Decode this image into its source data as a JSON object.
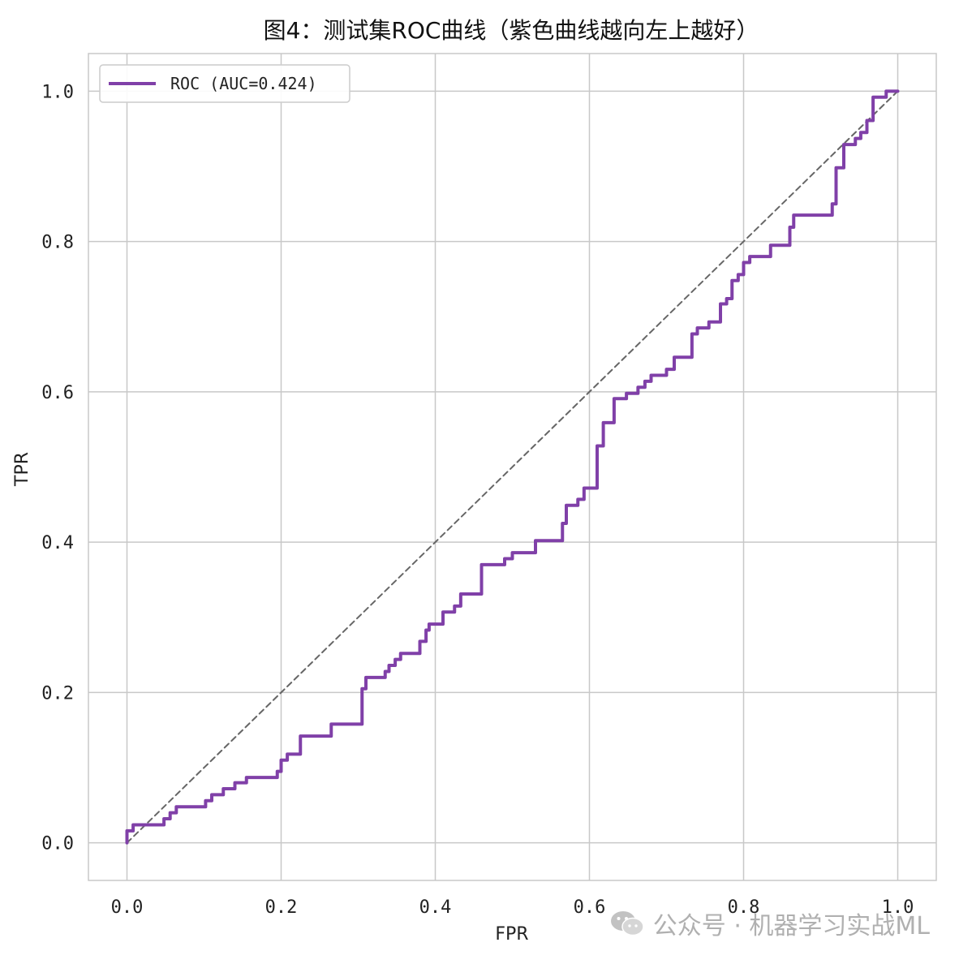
{
  "chart_data": {
    "type": "line",
    "title": "图4：测试集ROC曲线（紫色曲线越向左上越好）",
    "xlabel": "FPR",
    "ylabel": "TPR",
    "xlim": [
      -0.05,
      1.05
    ],
    "ylim": [
      -0.05,
      1.05
    ],
    "xticks": [
      "0.0",
      "0.2",
      "0.4",
      "0.6",
      "0.8",
      "1.0"
    ],
    "yticks": [
      "0.0",
      "0.2",
      "0.4",
      "0.6",
      "0.8",
      "1.0"
    ],
    "grid": true,
    "legend_position": "top-left",
    "series": [
      {
        "name": "ROC (AUC=0.424)",
        "color": "#8040a8",
        "style": "solid",
        "points": [
          [
            0.0,
            0.0
          ],
          [
            0.0,
            0.016
          ],
          [
            0.008,
            0.016
          ],
          [
            0.008,
            0.024
          ],
          [
            0.048,
            0.024
          ],
          [
            0.048,
            0.032
          ],
          [
            0.056,
            0.032
          ],
          [
            0.056,
            0.04
          ],
          [
            0.064,
            0.04
          ],
          [
            0.064,
            0.048
          ],
          [
            0.102,
            0.048
          ],
          [
            0.102,
            0.056
          ],
          [
            0.11,
            0.056
          ],
          [
            0.11,
            0.064
          ],
          [
            0.125,
            0.064
          ],
          [
            0.125,
            0.072
          ],
          [
            0.14,
            0.072
          ],
          [
            0.14,
            0.08
          ],
          [
            0.155,
            0.08
          ],
          [
            0.155,
            0.087
          ],
          [
            0.195,
            0.087
          ],
          [
            0.195,
            0.095
          ],
          [
            0.2,
            0.095
          ],
          [
            0.2,
            0.11
          ],
          [
            0.208,
            0.11
          ],
          [
            0.208,
            0.118
          ],
          [
            0.225,
            0.118
          ],
          [
            0.225,
            0.142
          ],
          [
            0.265,
            0.142
          ],
          [
            0.265,
            0.158
          ],
          [
            0.305,
            0.158
          ],
          [
            0.305,
            0.205
          ],
          [
            0.31,
            0.205
          ],
          [
            0.31,
            0.22
          ],
          [
            0.335,
            0.22
          ],
          [
            0.335,
            0.228
          ],
          [
            0.34,
            0.228
          ],
          [
            0.34,
            0.236
          ],
          [
            0.348,
            0.236
          ],
          [
            0.348,
            0.244
          ],
          [
            0.355,
            0.244
          ],
          [
            0.355,
            0.252
          ],
          [
            0.38,
            0.252
          ],
          [
            0.38,
            0.268
          ],
          [
            0.388,
            0.268
          ],
          [
            0.388,
            0.283
          ],
          [
            0.392,
            0.283
          ],
          [
            0.392,
            0.291
          ],
          [
            0.41,
            0.291
          ],
          [
            0.41,
            0.307
          ],
          [
            0.425,
            0.307
          ],
          [
            0.425,
            0.315
          ],
          [
            0.433,
            0.315
          ],
          [
            0.433,
            0.331
          ],
          [
            0.46,
            0.331
          ],
          [
            0.46,
            0.37
          ],
          [
            0.49,
            0.37
          ],
          [
            0.49,
            0.378
          ],
          [
            0.5,
            0.378
          ],
          [
            0.5,
            0.386
          ],
          [
            0.53,
            0.386
          ],
          [
            0.53,
            0.402
          ],
          [
            0.565,
            0.402
          ],
          [
            0.565,
            0.425
          ],
          [
            0.57,
            0.425
          ],
          [
            0.57,
            0.449
          ],
          [
            0.585,
            0.449
          ],
          [
            0.585,
            0.457
          ],
          [
            0.593,
            0.457
          ],
          [
            0.593,
            0.472
          ],
          [
            0.61,
            0.472
          ],
          [
            0.61,
            0.528
          ],
          [
            0.618,
            0.528
          ],
          [
            0.618,
            0.559
          ],
          [
            0.632,
            0.559
          ],
          [
            0.632,
            0.591
          ],
          [
            0.648,
            0.591
          ],
          [
            0.648,
            0.598
          ],
          [
            0.663,
            0.598
          ],
          [
            0.663,
            0.606
          ],
          [
            0.672,
            0.606
          ],
          [
            0.672,
            0.614
          ],
          [
            0.68,
            0.614
          ],
          [
            0.68,
            0.622
          ],
          [
            0.7,
            0.622
          ],
          [
            0.7,
            0.63
          ],
          [
            0.71,
            0.63
          ],
          [
            0.71,
            0.646
          ],
          [
            0.733,
            0.646
          ],
          [
            0.733,
            0.677
          ],
          [
            0.74,
            0.677
          ],
          [
            0.74,
            0.685
          ],
          [
            0.755,
            0.685
          ],
          [
            0.755,
            0.693
          ],
          [
            0.77,
            0.693
          ],
          [
            0.77,
            0.717
          ],
          [
            0.778,
            0.717
          ],
          [
            0.778,
            0.724
          ],
          [
            0.785,
            0.724
          ],
          [
            0.785,
            0.748
          ],
          [
            0.793,
            0.748
          ],
          [
            0.793,
            0.756
          ],
          [
            0.8,
            0.756
          ],
          [
            0.8,
            0.772
          ],
          [
            0.808,
            0.772
          ],
          [
            0.808,
            0.78
          ],
          [
            0.835,
            0.78
          ],
          [
            0.835,
            0.795
          ],
          [
            0.86,
            0.795
          ],
          [
            0.86,
            0.819
          ],
          [
            0.865,
            0.819
          ],
          [
            0.865,
            0.835
          ],
          [
            0.915,
            0.835
          ],
          [
            0.915,
            0.85
          ],
          [
            0.92,
            0.85
          ],
          [
            0.92,
            0.898
          ],
          [
            0.93,
            0.898
          ],
          [
            0.93,
            0.929
          ],
          [
            0.945,
            0.929
          ],
          [
            0.945,
            0.937
          ],
          [
            0.952,
            0.937
          ],
          [
            0.952,
            0.945
          ],
          [
            0.96,
            0.945
          ],
          [
            0.96,
            0.961
          ],
          [
            0.968,
            0.961
          ],
          [
            0.968,
            0.992
          ],
          [
            0.985,
            0.992
          ],
          [
            0.985,
            1.0
          ],
          [
            1.0,
            1.0
          ]
        ]
      },
      {
        "name": "",
        "color": "#666666",
        "style": "dashed",
        "points": [
          [
            0.0,
            0.0
          ],
          [
            1.0,
            1.0
          ]
        ]
      }
    ]
  },
  "watermark": {
    "text": "公众号 · 机器学习实战ML",
    "icon": "wechat-icon"
  }
}
